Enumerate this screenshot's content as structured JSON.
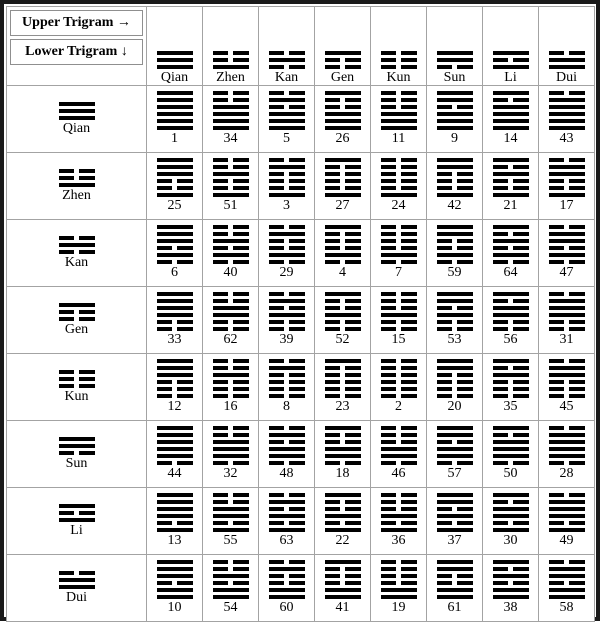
{
  "colors": {
    "line": "#000000",
    "cell_border": "#a3a3a3",
    "frame": "#1a1a1a",
    "background": "#ffffff"
  },
  "corner": {
    "upper_label": "Upper Trigram →",
    "lower_label": "Lower Trigram ↓"
  },
  "trigrams": {
    "names": [
      "Qian",
      "Zhen",
      "Kan",
      "Gen",
      "Kun",
      "Sun",
      "Li",
      "Dui"
    ],
    "lines": {
      "Qian": [
        1,
        1,
        1
      ],
      "Zhen": [
        0,
        0,
        1
      ],
      "Kan": [
        0,
        1,
        0
      ],
      "Gen": [
        1,
        0,
        0
      ],
      "Kun": [
        0,
        0,
        0
      ],
      "Sun": [
        1,
        1,
        0
      ],
      "Li": [
        1,
        0,
        1
      ],
      "Dui": [
        0,
        1,
        1
      ]
    }
  },
  "grid": {
    "columns_upper": [
      "Qian",
      "Zhen",
      "Kan",
      "Gen",
      "Kun",
      "Sun",
      "Li",
      "Dui"
    ],
    "rows": [
      {
        "lower": "Qian",
        "numbers": [
          1,
          34,
          5,
          26,
          11,
          9,
          14,
          43
        ]
      },
      {
        "lower": "Zhen",
        "numbers": [
          25,
          51,
          3,
          27,
          24,
          42,
          21,
          17
        ]
      },
      {
        "lower": "Kan",
        "numbers": [
          6,
          40,
          29,
          4,
          7,
          59,
          64,
          47
        ]
      },
      {
        "lower": "Gen",
        "numbers": [
          33,
          62,
          39,
          52,
          15,
          53,
          56,
          31
        ]
      },
      {
        "lower": "Kun",
        "numbers": [
          12,
          16,
          8,
          23,
          2,
          20,
          35,
          45
        ]
      },
      {
        "lower": "Sun",
        "numbers": [
          44,
          32,
          48,
          18,
          46,
          57,
          50,
          28
        ]
      },
      {
        "lower": "Li",
        "numbers": [
          13,
          55,
          63,
          22,
          36,
          37,
          30,
          49
        ]
      },
      {
        "lower": "Dui",
        "numbers": [
          10,
          54,
          60,
          41,
          19,
          61,
          38,
          58
        ]
      }
    ]
  }
}
